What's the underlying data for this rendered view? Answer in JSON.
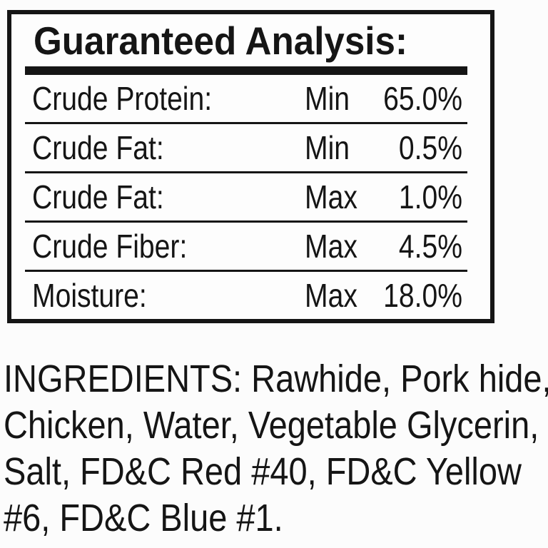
{
  "panel": {
    "title": "Guaranteed Analysis:",
    "rows": [
      {
        "label": "Crude Protein:",
        "constraint": "Min",
        "value": "65.0%"
      },
      {
        "label": "Crude Fat:",
        "constraint": "Min",
        "value": "0.5%"
      },
      {
        "label": "Crude Fat:",
        "constraint": "Max",
        "value": "1.0%"
      },
      {
        "label": "Crude Fiber:",
        "constraint": "Max",
        "value": "4.5%"
      },
      {
        "label": "Moisture:",
        "constraint": "Max",
        "value": "18.0%"
      }
    ]
  },
  "ingredients": {
    "full_text": "INGREDIENTS: Rawhide, Pork hide, Chicken, Water, Vegetable Glycerin, Salt, FD&C Red #40, FD&C Yellow #6, FD&C Blue #1.",
    "lines": [
      "INGREDIENTS: Rawhide, Pork hide,",
      "Chicken, Water, Vegetable Glycerin,",
      "Salt, FD&C Red #40, FD&C Yellow",
      "#6, FD&C Blue #1."
    ]
  },
  "colors": {
    "text": "#151515",
    "background": "#fcfcfc",
    "rule": "#151515"
  }
}
